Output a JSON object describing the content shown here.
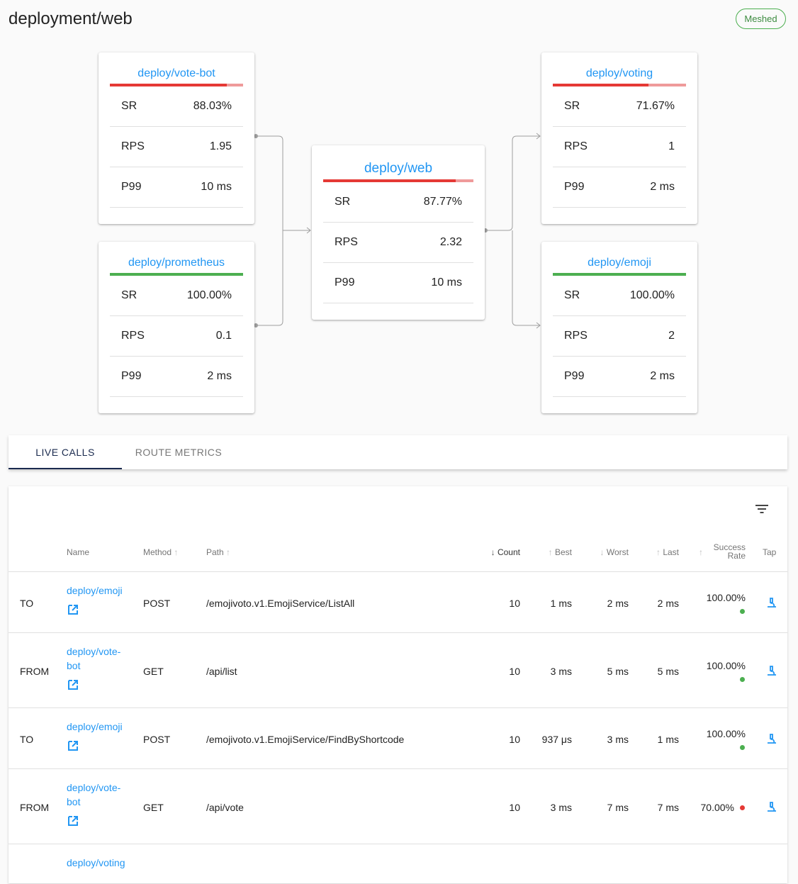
{
  "header": {
    "title": "deployment/web",
    "badge": "Meshed"
  },
  "metric_labels": {
    "sr": "SR",
    "rps": "RPS",
    "p99": "P99"
  },
  "graph": {
    "upstream": [
      {
        "name": "deploy/vote-bot",
        "sr": "88.03%",
        "rps": "1.95",
        "p99": "10 ms",
        "success_fraction": 0.8803,
        "status": "red"
      },
      {
        "name": "deploy/prometheus",
        "sr": "100.00%",
        "rps": "0.1",
        "p99": "2 ms",
        "success_fraction": 1.0,
        "status": "green"
      }
    ],
    "center": {
      "name": "deploy/web",
      "sr": "87.77%",
      "rps": "2.32",
      "p99": "10 ms",
      "success_fraction": 0.8777,
      "status": "red"
    },
    "downstream": [
      {
        "name": "deploy/voting",
        "sr": "71.67%",
        "rps": "1",
        "p99": "2 ms",
        "success_fraction": 0.7167,
        "status": "red"
      },
      {
        "name": "deploy/emoji",
        "sr": "100.00%",
        "rps": "2",
        "p99": "2 ms",
        "success_fraction": 1.0,
        "status": "green"
      }
    ]
  },
  "tabs": [
    {
      "label": "LIVE CALLS",
      "active": true
    },
    {
      "label": "ROUTE METRICS",
      "active": false
    }
  ],
  "table": {
    "columns": {
      "name": "Name",
      "method": "Method",
      "path": "Path",
      "count": "Count",
      "best": "Best",
      "worst": "Worst",
      "last": "Last",
      "success_rate_1": "Success",
      "success_rate_2": "Rate",
      "tap": "Tap"
    },
    "rows": [
      {
        "direction": "TO",
        "name": "deploy/emoji",
        "method": "POST",
        "path": "/emojivoto.v1.EmojiService/ListAll",
        "count": "10",
        "best": "1 ms",
        "worst": "2 ms",
        "last": "2 ms",
        "success_rate": "100.00%",
        "status": "green"
      },
      {
        "direction": "FROM",
        "name": "deploy/vote-bot",
        "method": "GET",
        "path": "/api/list",
        "count": "10",
        "best": "3 ms",
        "worst": "5 ms",
        "last": "5 ms",
        "success_rate": "100.00%",
        "status": "green"
      },
      {
        "direction": "TO",
        "name": "deploy/emoji",
        "method": "POST",
        "path": "/emojivoto.v1.EmojiService/FindByShortcode",
        "count": "10",
        "best": "937 μs",
        "worst": "3 ms",
        "last": "1 ms",
        "success_rate": "100.00%",
        "status": "green"
      },
      {
        "direction": "FROM",
        "name": "deploy/vote-bot",
        "method": "GET",
        "path": "/api/vote",
        "count": "10",
        "best": "3 ms",
        "worst": "7 ms",
        "last": "7 ms",
        "success_rate": "70.00%",
        "status": "red"
      },
      {
        "direction": "",
        "name": "deploy/voting",
        "method": "",
        "path": "",
        "count": "",
        "best": "",
        "worst": "",
        "last": "",
        "success_rate": "",
        "status": ""
      }
    ]
  },
  "colors": {
    "accent": "#2196f3",
    "success": "#4caf50",
    "error": "#e53935",
    "error_light": "#ef9a9a",
    "tab_active": "#1a2a4e"
  },
  "icons": {
    "filter": "filter-list-icon",
    "open": "open-in-new-icon",
    "tap": "microscope-icon",
    "sort": "arrow-icon"
  }
}
